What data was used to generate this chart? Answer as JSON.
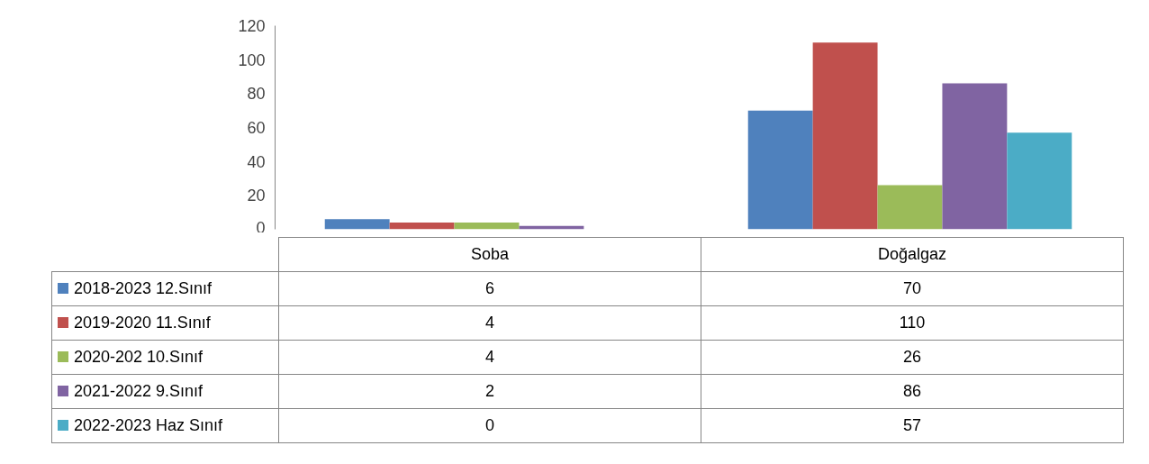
{
  "chart_data": {
    "type": "bar",
    "categories": [
      "Soba",
      "Doğalgaz"
    ],
    "series": [
      {
        "name": "2018-2023 12.Sınıf",
        "color": "#4f81bd",
        "values": [
          6,
          70
        ]
      },
      {
        "name": "2019-2020 11.Sınıf",
        "color": "#c0504d",
        "values": [
          4,
          110
        ]
      },
      {
        "name": "2020-202 10.Sınıf",
        "color": "#9bbb59",
        "values": [
          4,
          26
        ]
      },
      {
        "name": "2021-2022 9.Sınıf",
        "color": "#8064a2",
        "values": [
          2,
          86
        ]
      },
      {
        "name": "2022-2023 Haz Sınıf",
        "color": "#4bacc6",
        "values": [
          0,
          57
        ]
      }
    ],
    "ylim": [
      0,
      120
    ],
    "yticks": [
      0,
      20,
      40,
      60,
      80,
      100,
      120
    ],
    "grid": false,
    "legend": "bottom",
    "data_labels": true
  }
}
